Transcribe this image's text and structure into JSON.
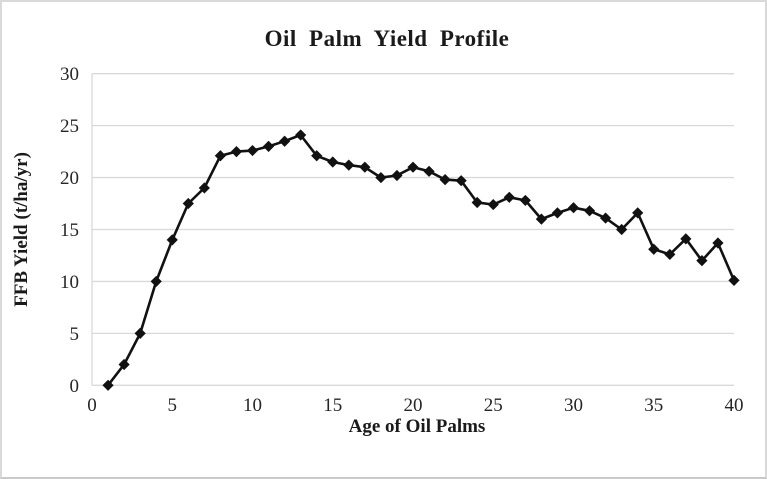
{
  "chart_data": {
    "type": "line",
    "title": "Oil Palm Yield Profile",
    "xlabel": "Age of Oil Palms",
    "ylabel": "FFB Yield (t/ha/yr)",
    "x": [
      1,
      2,
      3,
      4,
      5,
      6,
      7,
      8,
      9,
      10,
      11,
      12,
      13,
      14,
      15,
      16,
      17,
      18,
      19,
      20,
      21,
      22,
      23,
      24,
      25,
      26,
      27,
      28,
      29,
      30,
      31,
      32,
      33,
      34,
      35,
      36,
      37,
      38,
      39,
      40
    ],
    "values": [
      0,
      2,
      5,
      10,
      14,
      17.5,
      19,
      22.1,
      22.5,
      22.6,
      23,
      23.5,
      24.1,
      22.1,
      21.5,
      21.2,
      21,
      20,
      20.2,
      21,
      20.6,
      19.8,
      19.7,
      17.6,
      17.4,
      18.1,
      17.8,
      16,
      16.6,
      17.1,
      16.8,
      16.1,
      15,
      16.6,
      13.1,
      12.6,
      14.1,
      12,
      13.7,
      10.1
    ],
    "xlim": [
      0,
      40
    ],
    "ylim": [
      0,
      30
    ],
    "xticks": [
      0,
      5,
      10,
      15,
      20,
      25,
      30,
      35,
      40
    ],
    "yticks": [
      0,
      5,
      10,
      15,
      20,
      25,
      30
    ],
    "grid": true,
    "legend": "none",
    "marker": "diamond",
    "series_name": "FFB Yield",
    "line_color": "#111111",
    "grid_color": "#d9d9d9",
    "text_color": "#262626"
  }
}
